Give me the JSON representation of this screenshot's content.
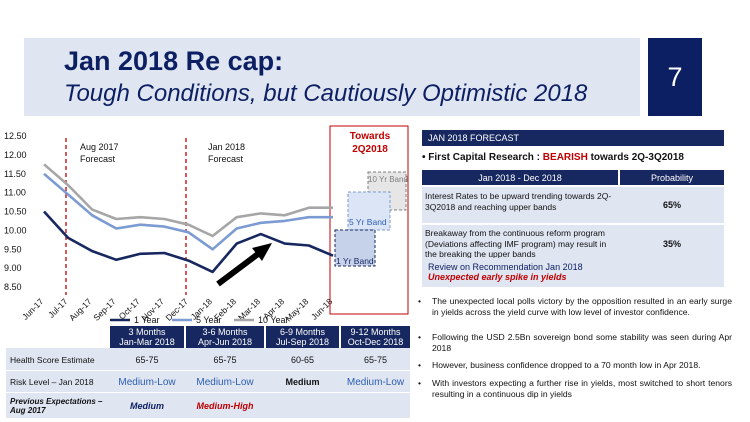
{
  "header": {
    "title": "Jan 2018 Re cap:",
    "subtitle": "Tough Conditions, but Cautiously Optimistic 2018",
    "page_number": "7"
  },
  "annotations": {
    "aug_forecast": [
      "Aug 2017",
      "Forecast"
    ],
    "jan_forecast": [
      "Jan 2018",
      "Forecast"
    ],
    "towards": [
      "Towards",
      "2Q2018"
    ],
    "band_10": "10 Yr Band",
    "band_5": "5 Yr Band",
    "band_1": "1 Yr Band"
  },
  "chart_data": {
    "type": "line",
    "x": [
      "Jun-17",
      "Jul-17",
      "Aug-17",
      "Sep-17",
      "Oct-17",
      "Nov-17",
      "Dec-17",
      "Jan-18",
      "Feb-18",
      "Mar-18",
      "Apr-18",
      "May-18",
      "Jun-18"
    ],
    "series": [
      {
        "name": "1 Year",
        "color": "#17275f",
        "values": [
          10.5,
          9.8,
          9.45,
          9.22,
          9.38,
          9.4,
          9.2,
          8.9,
          9.65,
          9.9,
          9.65,
          9.6,
          9.33
        ]
      },
      {
        "name": "5 Year",
        "color": "#7b9bd2",
        "values": [
          11.5,
          10.95,
          10.4,
          10.05,
          10.15,
          10.1,
          9.95,
          9.5,
          10.05,
          10.2,
          10.25,
          10.35,
          10.35
        ]
      },
      {
        "name": "10 Year",
        "color": "#a6a6a6",
        "values": [
          11.75,
          11.2,
          10.55,
          10.3,
          10.35,
          10.3,
          10.15,
          9.85,
          10.35,
          10.45,
          10.4,
          10.6,
          10.6
        ]
      }
    ],
    "ylim": [
      8.5,
      12.5
    ],
    "yticks": [
      "12.50",
      "12.00",
      "11.50",
      "11.00",
      "10.50",
      "10.00",
      "9.50",
      "9.00",
      "8.50"
    ],
    "legend": [
      "1 Year",
      "5 Year",
      "10 Year"
    ]
  },
  "scores_table": {
    "columns": [
      {
        "line1": "3 Months",
        "line2": "Jan-Mar 2018"
      },
      {
        "line1": "3-6 Months",
        "line2": "Apr-Jun 2018"
      },
      {
        "line1": "6-9 Months",
        "line2": "Jul-Sep 2018"
      },
      {
        "line1": "9-12 Months",
        "line2": "Oct-Dec 2018"
      }
    ],
    "rows": [
      {
        "label": "Health Score Estimate",
        "values": [
          "65-75",
          "65-75",
          "60-65",
          "65-75"
        ]
      },
      {
        "label": "Risk Level – Jan 2018",
        "values": [
          "Medium-Low",
          "Medium-Low",
          "Medium",
          "Medium-Low"
        ]
      },
      {
        "label": "Previous Expectations – Aug 2017",
        "values": [
          "Medium",
          "Medium-High",
          "",
          ""
        ]
      }
    ]
  },
  "forecast": {
    "heading": "JAN 2018 FORECAST",
    "bullet_prefix": "First Capital Research :",
    "bearish": "BEARISH",
    "bullet_suffix": "towards 2Q-3Q2018",
    "table_head": [
      "Jan 2018 - Dec 2018",
      "Probability"
    ],
    "rows": [
      {
        "text": "Interest Rates to be upward trending towards 2Q-3Q2018 and reaching upper bands",
        "prob": "65%"
      },
      {
        "text": "Breakaway from the continuous reform program (Deviations affecting IMF program) may result in the breaking the upper bands",
        "prob": "35%"
      }
    ]
  },
  "review": {
    "title": "Review on Recommendation Jan 2018",
    "subtitle": "Unexpected early spike in yields",
    "bullets": [
      "The unexpected local polls victory by the opposition resulted in an early surge in yields across the yield curve with low level of investor confidence.",
      "Following the USD 2.5Bn sovereign bond some stability was seen during Apr 2018",
      "However, business confidence dropped to a 70 month low in Apr 2018.",
      "With investors expecting a further rise in yields, most switched to short tenors resulting in a continuous dip in yields"
    ]
  },
  "colors": {
    "navy": "#0c1f63",
    "red": "#c00000",
    "blue_mid": "#2e5fb3"
  }
}
